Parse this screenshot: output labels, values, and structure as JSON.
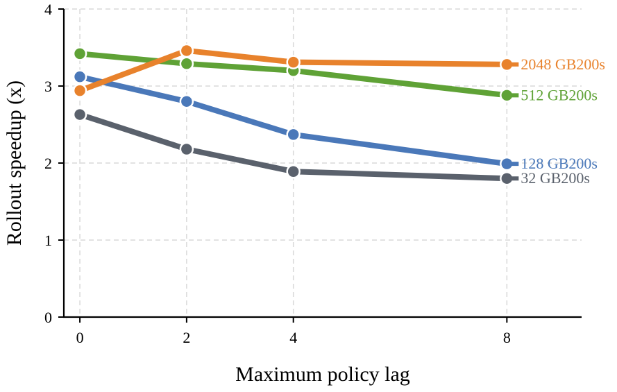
{
  "chart_data": {
    "type": "line",
    "title": "",
    "xlabel": "Maximum policy lag",
    "ylabel": "Rollout speedup (x)",
    "x": [
      0,
      2,
      4,
      8
    ],
    "xlim": [
      -0.3,
      9.4
    ],
    "ylim": [
      0,
      4
    ],
    "xticks": [
      "0",
      "2",
      "4",
      "8"
    ],
    "yticks": [
      "0",
      "1",
      "2",
      "3",
      "4"
    ],
    "grid": true,
    "legend": "none",
    "series": [
      {
        "name": "2048 GB200s",
        "color": "#E8822C",
        "values": [
          2.94,
          3.46,
          3.31,
          3.28
        ]
      },
      {
        "name": "512 GB200s",
        "color": "#5FA236",
        "values": [
          3.42,
          3.29,
          3.2,
          2.88
        ]
      },
      {
        "name": "128 GB200s",
        "color": "#4A78B9",
        "values": [
          3.12,
          2.8,
          2.37,
          1.99
        ]
      },
      {
        "name": "32 GB200s",
        "color": "#5A616C",
        "values": [
          2.63,
          2.18,
          1.89,
          1.8
        ]
      }
    ]
  }
}
